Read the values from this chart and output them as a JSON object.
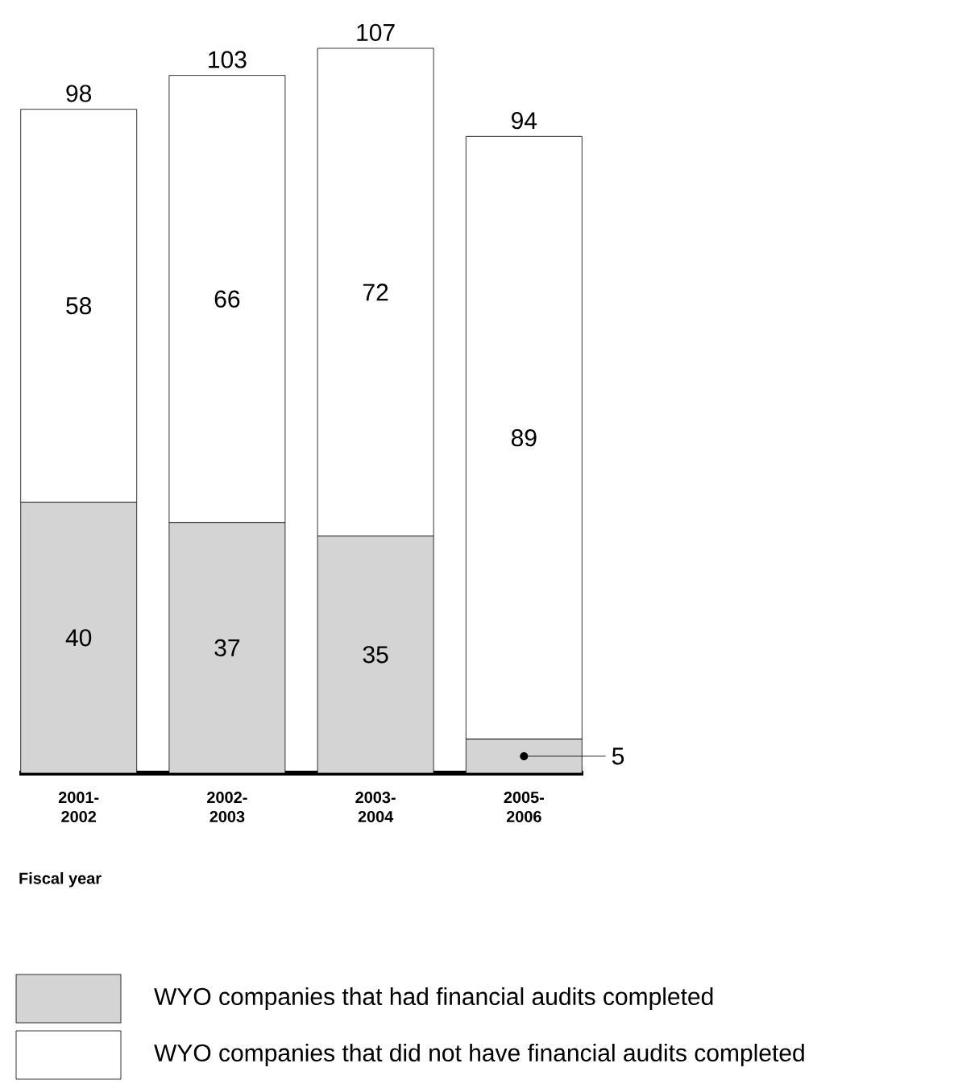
{
  "chart_data": {
    "type": "bar",
    "stacked": true,
    "data_labels": true,
    "legend": "bottom",
    "xlabel": "Fiscal year",
    "categories": [
      "2001-2002",
      "2002-2003",
      "2003-2004",
      "2005-2006"
    ],
    "series": [
      {
        "name": "WYO companies that had financial audits completed",
        "color": "#d4d4d4",
        "values": [
          40,
          37,
          35,
          5
        ]
      },
      {
        "name": "WYO companies that did not have financial audits completed",
        "color": "#ffffff",
        "values": [
          58,
          66,
          72,
          89
        ]
      }
    ],
    "totals": [
      "98",
      "103",
      "107",
      "94"
    ]
  }
}
